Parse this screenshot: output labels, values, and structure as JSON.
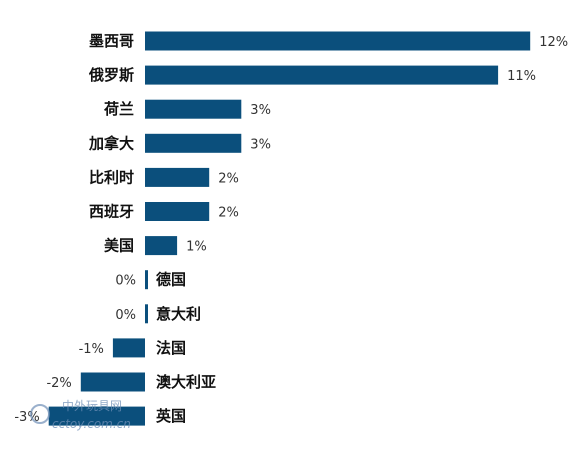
{
  "chart_data": {
    "type": "bar",
    "orientation": "horizontal",
    "categories": [
      "墨西哥",
      "俄罗斯",
      "荷兰",
      "加拿大",
      "比利时",
      "西班牙",
      "美国",
      "德国",
      "意大利",
      "法国",
      "澳大利亚",
      "英国"
    ],
    "values": [
      12,
      11,
      3,
      3,
      2,
      2,
      1,
      0,
      0,
      -1,
      -2,
      -3
    ],
    "value_labels": [
      "12%",
      "11%",
      "3%",
      "3%",
      "2%",
      "2%",
      "1%",
      "0%",
      "0%",
      "-1%",
      "-2%",
      "-3%"
    ],
    "value_unit": "%",
    "xlim": [
      -3,
      12
    ],
    "grid": false,
    "legend": "none",
    "bar_color": "#0b4f7c"
  },
  "watermark": {
    "line1": "中外玩具网",
    "line2": "cctoy.com.cn"
  }
}
